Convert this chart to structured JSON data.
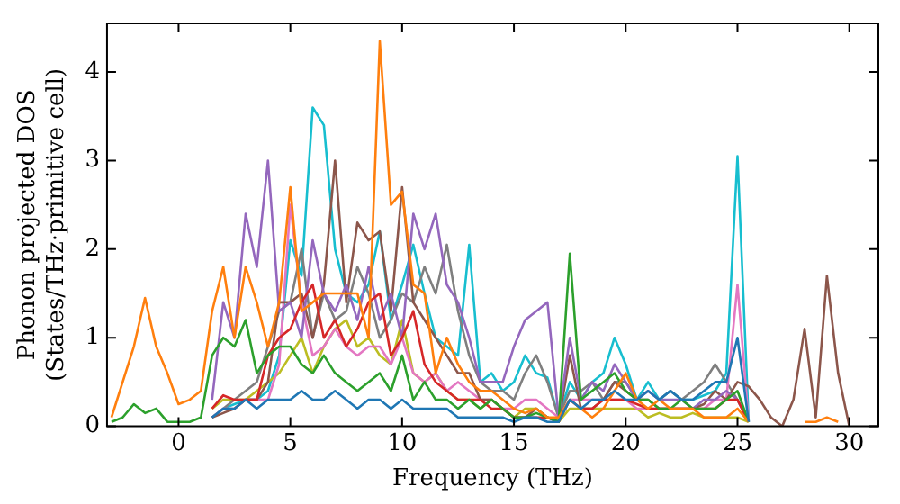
{
  "chart_data": {
    "type": "line",
    "xlabel": "Frequency (THz)",
    "ylabel": "Phonon projected DOS\n(States/THz·primitive cell)",
    "x": [
      -3,
      -2.5,
      -2,
      -1.5,
      -1,
      -0.5,
      0,
      0.5,
      1,
      1.5,
      2,
      2.5,
      3,
      3.5,
      4,
      4.5,
      5,
      5.5,
      6,
      6.5,
      7,
      7.5,
      8,
      8.5,
      9,
      9.5,
      10,
      10.5,
      11,
      11.5,
      12,
      12.5,
      13,
      13.5,
      14,
      14.5,
      15,
      15.5,
      16,
      16.5,
      17,
      17.5,
      18,
      18.5,
      19,
      19.5,
      20,
      20.5,
      21,
      21.5,
      22,
      22.5,
      23,
      23.5,
      24,
      24.5,
      25,
      25.5,
      26,
      26.5,
      27,
      27.5,
      28,
      28.5,
      29,
      29.5,
      30
    ],
    "xlim": [
      -3.2,
      31.3
    ],
    "ylim": [
      0,
      4.55
    ],
    "xticks": [
      0,
      5,
      10,
      15,
      20,
      25,
      30
    ],
    "yticks": [
      0,
      1,
      2,
      3,
      4
    ],
    "grid": false,
    "legend": false,
    "marker": "none",
    "line_style": "solid",
    "series": [
      {
        "color": "#1f77b4",
        "values": [
          null,
          null,
          null,
          null,
          null,
          null,
          null,
          null,
          null,
          0.1,
          0.2,
          0.2,
          0.3,
          0.2,
          0.3,
          0.3,
          0.3,
          0.4,
          0.3,
          0.3,
          0.4,
          0.3,
          0.2,
          0.3,
          0.3,
          0.2,
          0.3,
          0.2,
          0.2,
          0.2,
          0.2,
          0.1,
          0.1,
          0.1,
          0.1,
          0.1,
          0.05,
          0.1,
          0.1,
          0.05,
          0.05,
          0.3,
          0.2,
          0.3,
          0.3,
          0.4,
          0.3,
          0.3,
          0.4,
          0.3,
          0.4,
          0.3,
          0.3,
          0.4,
          0.5,
          0.5,
          1.0,
          0.05,
          null,
          null,
          null,
          null,
          null,
          null,
          null,
          null,
          null
        ]
      },
      {
        "color": "#ff7f0e",
        "values": [
          0.1,
          0.5,
          0.9,
          1.45,
          0.9,
          0.6,
          0.25,
          0.3,
          0.4,
          1.3,
          1.8,
          1.0,
          1.8,
          1.4,
          0.9,
          1.4,
          2.7,
          1.3,
          1.4,
          1.5,
          1.5,
          1.5,
          1.5,
          1.0,
          4.35,
          2.5,
          2.65,
          1.6,
          1.5,
          0.6,
          1.0,
          0.7,
          0.5,
          0.4,
          0.4,
          0.3,
          0.2,
          0.15,
          0.2,
          0.1,
          0.1,
          0.3,
          0.2,
          0.1,
          0.2,
          0.4,
          0.6,
          0.3,
          0.2,
          0.3,
          0.2,
          0.2,
          0.2,
          0.1,
          0.1,
          0.1,
          0.2,
          0.05,
          null,
          null,
          null,
          null,
          0.05,
          0.05,
          0.1,
          0.05,
          null
        ]
      },
      {
        "color": "#2ca02c",
        "values": [
          0.05,
          0.1,
          0.25,
          0.15,
          0.2,
          0.05,
          0.05,
          0.05,
          0.1,
          0.8,
          1.0,
          0.9,
          1.2,
          0.6,
          0.8,
          0.9,
          0.9,
          0.7,
          0.6,
          0.8,
          0.6,
          0.5,
          0.4,
          0.5,
          0.6,
          0.4,
          0.8,
          0.3,
          0.5,
          0.3,
          0.3,
          0.2,
          0.3,
          0.2,
          0.3,
          0.2,
          0.1,
          0.1,
          0.15,
          0.1,
          0.05,
          1.95,
          0.3,
          0.4,
          0.5,
          0.6,
          0.4,
          0.3,
          0.3,
          0.2,
          0.2,
          0.3,
          0.2,
          0.2,
          0.2,
          0.3,
          0.4,
          0.05,
          null,
          null,
          null,
          null,
          null,
          null,
          null,
          null,
          null
        ]
      },
      {
        "color": "#d62728",
        "values": [
          null,
          null,
          null,
          null,
          null,
          null,
          null,
          null,
          null,
          0.2,
          0.35,
          0.3,
          0.3,
          0.3,
          0.8,
          1.0,
          1.1,
          1.4,
          1.6,
          1.0,
          1.2,
          0.9,
          1.1,
          1.4,
          1.5,
          0.8,
          1.0,
          1.3,
          0.7,
          0.5,
          0.4,
          0.3,
          0.3,
          0.3,
          0.2,
          0.2,
          0.1,
          0.1,
          0.1,
          0.1,
          0.05,
          0.3,
          0.2,
          0.2,
          0.3,
          0.3,
          0.3,
          0.25,
          0.2,
          0.2,
          0.2,
          0.2,
          0.2,
          0.2,
          0.2,
          0.3,
          0.3,
          0.05,
          null,
          null,
          null,
          null,
          null,
          null,
          null,
          null,
          null
        ]
      },
      {
        "color": "#9467bd",
        "values": [
          null,
          null,
          null,
          null,
          null,
          null,
          null,
          null,
          null,
          0.3,
          1.4,
          1.0,
          2.4,
          1.8,
          3.0,
          1.3,
          1.4,
          1.0,
          2.1,
          1.5,
          1.3,
          1.6,
          1.2,
          1.8,
          1.2,
          1.5,
          1.0,
          2.4,
          2.0,
          2.4,
          1.6,
          1.4,
          1.0,
          0.5,
          0.5,
          0.5,
          0.9,
          1.2,
          1.3,
          1.4,
          0.1,
          1.0,
          0.3,
          0.5,
          0.4,
          0.7,
          0.5,
          0.3,
          0.4,
          0.3,
          0.3,
          0.3,
          0.2,
          0.3,
          0.3,
          0.4,
          0.3,
          0.05,
          null,
          null,
          null,
          null,
          null,
          null,
          null,
          null,
          null
        ]
      },
      {
        "color": "#8c564b",
        "values": [
          null,
          null,
          null,
          null,
          null,
          null,
          null,
          null,
          null,
          0.1,
          0.15,
          0.2,
          0.3,
          0.3,
          0.5,
          1.4,
          1.4,
          1.5,
          1.0,
          1.6,
          3.0,
          1.4,
          2.3,
          2.1,
          2.2,
          1.3,
          2.7,
          1.4,
          1.2,
          1.0,
          0.8,
          0.6,
          0.6,
          0.3,
          0.3,
          0.2,
          0.1,
          0.1,
          0.2,
          0.1,
          0.05,
          0.8,
          0.2,
          0.2,
          0.3,
          0.5,
          0.4,
          0.3,
          0.3,
          0.2,
          0.2,
          0.2,
          0.2,
          0.25,
          0.4,
          0.3,
          0.5,
          0.45,
          0.3,
          0.1,
          0,
          0.3,
          1.1,
          0.1,
          1.7,
          0.6,
          0
        ]
      },
      {
        "color": "#e377c2",
        "values": [
          null,
          null,
          null,
          null,
          null,
          null,
          null,
          null,
          null,
          0.1,
          0.2,
          0.2,
          0.3,
          0.3,
          0.3,
          0.7,
          2.5,
          1.4,
          0.8,
          0.9,
          1.1,
          0.9,
          0.8,
          0.9,
          0.9,
          0.7,
          1.0,
          0.6,
          0.5,
          0.6,
          0.4,
          0.5,
          0.4,
          0.3,
          0.3,
          0.2,
          0.2,
          0.3,
          0.3,
          0.2,
          0.1,
          0.3,
          0.3,
          0.3,
          0.3,
          0.3,
          0.3,
          0.2,
          0.2,
          0.2,
          0.2,
          0.2,
          0.2,
          0.2,
          0.3,
          0.3,
          1.6,
          0.05,
          null,
          null,
          null,
          null,
          null,
          null,
          null,
          null,
          null
        ]
      },
      {
        "color": "#7f7f7f",
        "values": [
          null,
          null,
          null,
          null,
          null,
          null,
          null,
          null,
          null,
          0.1,
          0.2,
          0.3,
          0.4,
          0.5,
          0.9,
          1.3,
          1.4,
          2.0,
          1.0,
          1.5,
          1.2,
          1.3,
          1.8,
          1.5,
          1.0,
          1.2,
          1.5,
          1.4,
          1.8,
          1.5,
          2.05,
          1.3,
          0.8,
          0.5,
          0.4,
          0.4,
          0.3,
          0.6,
          0.8,
          0.5,
          0.1,
          0.4,
          0.4,
          0.5,
          0.3,
          0.5,
          0.5,
          0.3,
          0.4,
          0.3,
          0.4,
          0.3,
          0.4,
          0.5,
          0.7,
          0.5,
          0.3,
          0.05,
          null,
          null,
          null,
          null,
          null,
          null,
          null,
          null,
          null
        ]
      },
      {
        "color": "#bcbd22",
        "values": [
          null,
          null,
          null,
          null,
          null,
          null,
          null,
          null,
          null,
          0.2,
          0.3,
          0.3,
          0.3,
          0.4,
          0.5,
          0.6,
          0.8,
          1.0,
          0.6,
          0.9,
          1.1,
          1.2,
          0.9,
          1.0,
          0.8,
          0.7,
          1.2,
          0.6,
          0.5,
          0.6,
          0.4,
          0.3,
          0.3,
          0.2,
          0.3,
          0.2,
          0.1,
          0.2,
          0.2,
          0.1,
          0.05,
          0.2,
          0.2,
          0.2,
          0.2,
          0.2,
          0.2,
          0.2,
          0.1,
          0.15,
          0.1,
          0.1,
          0.15,
          0.1,
          0.1,
          0.1,
          0.1,
          0.05,
          null,
          null,
          null,
          null,
          null,
          null,
          null,
          null,
          null
        ]
      },
      {
        "color": "#17becf",
        "values": [
          null,
          null,
          null,
          null,
          null,
          null,
          null,
          null,
          null,
          0.1,
          0.2,
          0.25,
          0.3,
          0.3,
          0.4,
          0.8,
          2.1,
          1.7,
          3.6,
          3.4,
          2.0,
          1.5,
          1.4,
          1.6,
          2.2,
          1.2,
          1.6,
          2.05,
          1.5,
          1.0,
          0.9,
          0.8,
          2.05,
          0.5,
          0.6,
          0.4,
          0.5,
          0.8,
          0.6,
          0.55,
          0.1,
          0.5,
          0.3,
          0.5,
          0.6,
          1.0,
          0.7,
          0.3,
          0.5,
          0.3,
          0.4,
          0.3,
          0.3,
          0.35,
          0.4,
          0.6,
          3.05,
          0.05,
          null,
          null,
          null,
          null,
          null,
          null,
          null,
          null,
          null
        ]
      }
    ]
  }
}
